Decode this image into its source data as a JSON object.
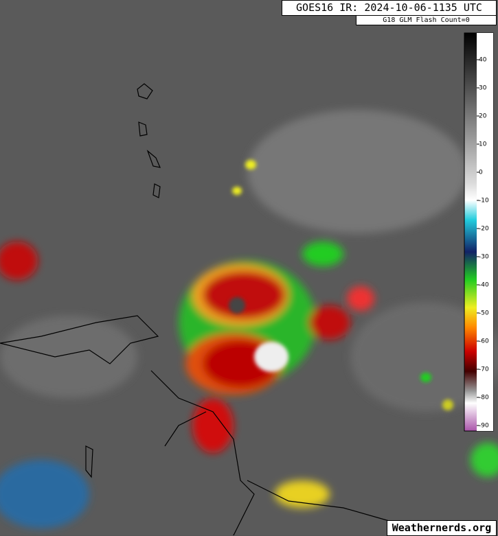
{
  "header": {
    "title": "GOES16 IR: 2024-10-06-1135 UTC",
    "subtitle": "G18 GLM Flash Count=0"
  },
  "colorbar": {
    "ticks": [
      40,
      30,
      20,
      10,
      0,
      -10,
      -20,
      -30,
      -40,
      -50,
      -60,
      -70,
      -80,
      -90
    ]
  },
  "footer": {
    "credit": "Weathernerds.org"
  }
}
